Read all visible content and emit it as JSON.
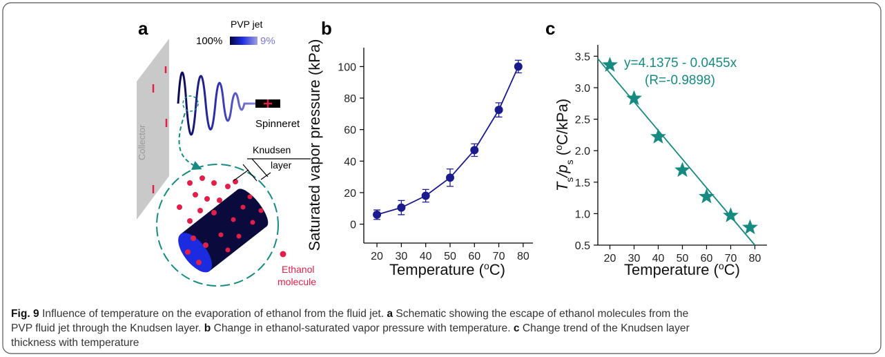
{
  "panel_a": {
    "label": "a",
    "jet_label": "PVP jet",
    "conc_high": "100%",
    "conc_low": "9%",
    "spinneret": "Spinneret",
    "collector": "Collector",
    "knudsen": [
      "Knudsen",
      "layer"
    ],
    "ethanol": [
      "Ethanol",
      "molecule"
    ]
  },
  "chart_data": [
    {
      "type": "line",
      "panel": "b",
      "xlabel": [
        "Temperature (",
        "o",
        "C)"
      ],
      "ylabel": [
        "Saturated vapor pressure (kPa)"
      ],
      "xlim": [
        14.6,
        84
      ],
      "ylim": [
        -12,
        112
      ],
      "xticks": [
        20,
        30,
        40,
        50,
        60,
        70,
        80
      ],
      "yticks": [
        0,
        20,
        40,
        60,
        80,
        100
      ],
      "series": [
        {
          "color": "#1a1a8c",
          "marker": "circle",
          "x": [
            20,
            30,
            40,
            50,
            60,
            70,
            78
          ],
          "values": [
            6,
            10.5,
            18,
            29.5,
            47,
            72.5,
            100
          ],
          "errors": [
            3,
            4.5,
            4,
            5.5,
            4,
            4.5,
            4
          ]
        }
      ]
    },
    {
      "type": "scatter",
      "panel": "c",
      "xlabel": [
        "Temperature (",
        "o",
        "C)"
      ],
      "ylabel": [
        "T",
        "s",
        "/p",
        "s",
        " (",
        "o",
        "C/kPa)"
      ],
      "annotation": [
        "y=4.1375 - 0.0455x",
        "(R=-0.9898)"
      ],
      "xlim": [
        15,
        85
      ],
      "ylim": [
        0.5,
        3.68
      ],
      "xticks": [
        20,
        30,
        40,
        50,
        60,
        70,
        80
      ],
      "yticks": [
        0.5,
        {
          "value": 1,
          "label": "1.0"
        },
        1.5,
        {
          "value": 2,
          "label": "2.0"
        },
        2.5,
        {
          "value": 3,
          "label": "3.0"
        },
        3.5
      ],
      "series": [
        {
          "color": "#168a80",
          "marker": "star",
          "x": [
            20,
            30,
            40,
            50,
            60,
            70,
            78
          ],
          "values": [
            3.36,
            2.83,
            2.22,
            1.69,
            1.27,
            0.97,
            0.78
          ]
        },
        {
          "color": "#168a80",
          "marker": "none",
          "x": [
            15,
            80
          ],
          "values": [
            3.46,
            0.5
          ]
        }
      ]
    }
  ],
  "caption": {
    "lines": [
      [
        "Fig. 9",
        " Influence of temperature on the evaporation of ethanol from the fluid jet. ",
        "a",
        " Schematic showing the escape of ethanol molecules from the"
      ],
      [
        "PVP fluid jet through the Knudsen layer. ",
        "b",
        " Change in ethanol-saturated vapor pressure with temperature. ",
        "c",
        " Change trend of the Knudsen layer"
      ],
      [
        "thickness with temperature"
      ]
    ]
  }
}
